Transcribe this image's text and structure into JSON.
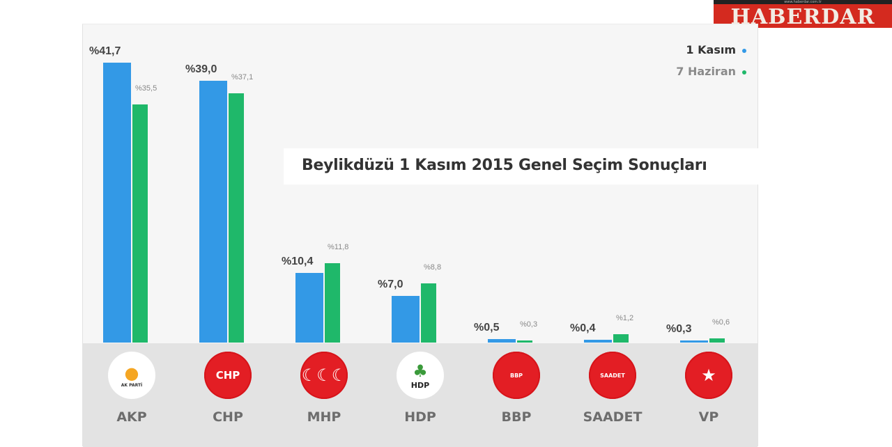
{
  "brand": {
    "name": "HABERDAR",
    "url": "www.haberdar.com.tr"
  },
  "chart_data": {
    "type": "bar",
    "title": "Beylikdüzü 1 Kasım 2015 Genel Seçim Sonuçları",
    "categories": [
      "AKP",
      "CHP",
      "MHP",
      "HDP",
      "BBP",
      "SAADET",
      "VP"
    ],
    "series": [
      {
        "name": "1 Kasım",
        "color": "#3399e6",
        "values": [
          41.7,
          39.0,
          10.4,
          7.0,
          0.5,
          0.4,
          0.3
        ]
      },
      {
        "name": "7 Haziran",
        "color": "#1fb86a",
        "values": [
          35.5,
          37.1,
          11.8,
          8.8,
          0.3,
          1.2,
          0.6
        ]
      }
    ],
    "labels_blue": [
      "%41,7",
      "%39,0",
      "%10,4",
      "%7,0",
      "%0,5",
      "%0,4",
      "%0,3"
    ],
    "labels_green": [
      "%35,5",
      "%37,1",
      "%11,8",
      "%8,8",
      "%0,3",
      "%1,2",
      "%0,6"
    ],
    "xlabel": "",
    "ylabel": "",
    "ylim": [
      0,
      45
    ],
    "grid": false,
    "legend_position": "top-right"
  },
  "legend": {
    "items": [
      {
        "label": "1 Kasım",
        "color": "#3399e6",
        "text_color": "#333333"
      },
      {
        "label": "7 Haziran",
        "color": "#1fb86a",
        "text_color": "#8a8a8a"
      }
    ]
  },
  "parties": [
    {
      "name": "AKP",
      "logo_text": "AK PARTİ",
      "logo_style": "white"
    },
    {
      "name": "CHP",
      "logo_text": "CHP",
      "logo_style": "red"
    },
    {
      "name": "MHP",
      "logo_text": "☾☾☾",
      "logo_style": "red"
    },
    {
      "name": "HDP",
      "logo_text": "HDP",
      "logo_style": "white"
    },
    {
      "name": "BBP",
      "logo_text": "BBP",
      "logo_style": "red"
    },
    {
      "name": "SAADET",
      "logo_text": "SAADET",
      "logo_style": "red"
    },
    {
      "name": "VP",
      "logo_text": "★",
      "logo_style": "red"
    }
  ]
}
